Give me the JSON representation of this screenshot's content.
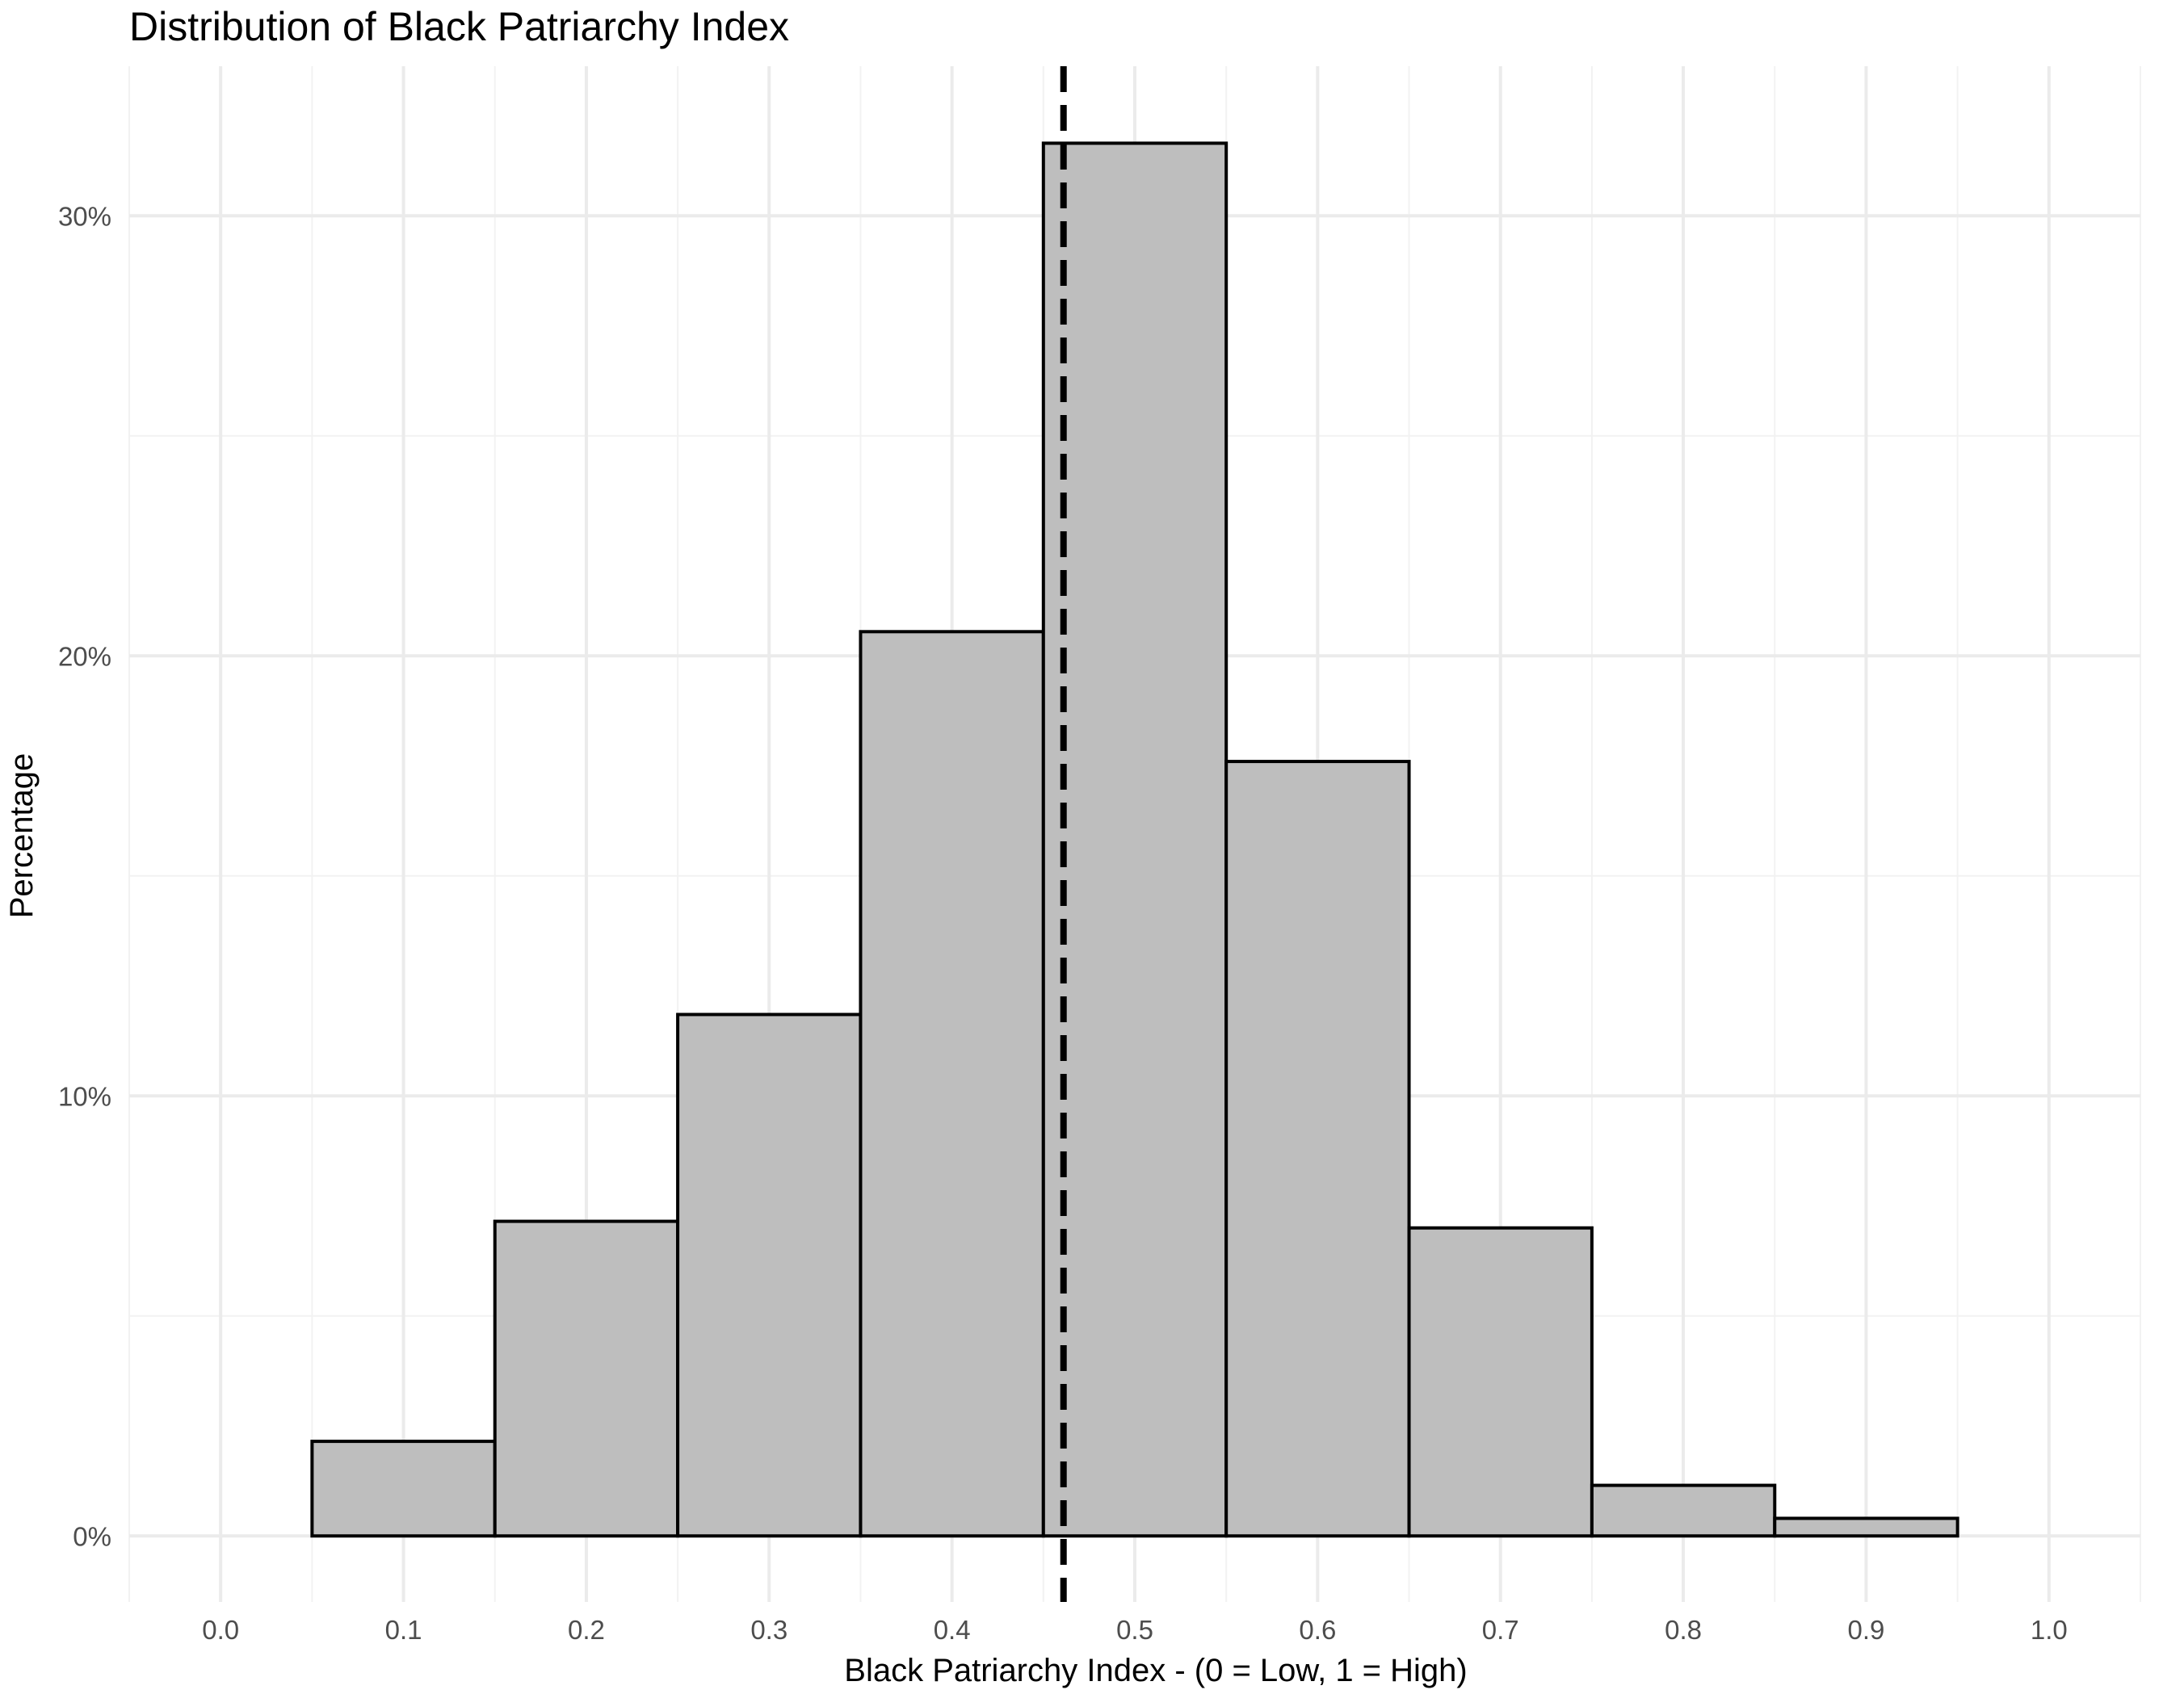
{
  "chart_data": {
    "type": "bar",
    "title": "Distribution of Black Patriarchy Index",
    "xlabel": "Black Patriarchy Index -  (0 = Low, 1 = High)",
    "ylabel": "Percentage",
    "xlim": [
      -0.05,
      1.05
    ],
    "ylim": [
      -0.015,
      0.334
    ],
    "x_ticks": [
      0.0,
      0.1,
      0.2,
      0.3,
      0.4,
      0.5,
      0.6,
      0.7,
      0.8,
      0.9,
      1.0
    ],
    "x_tick_labels": [
      "0.0",
      "0.1",
      "0.2",
      "0.3",
      "0.4",
      "0.5",
      "0.6",
      "0.7",
      "0.8",
      "0.9",
      "1.0"
    ],
    "y_ticks": [
      0,
      0.1,
      0.2,
      0.3
    ],
    "y_tick_labels": [
      "0%",
      "10%",
      "20%",
      "30%"
    ],
    "bin_width": 0.1,
    "bins": [
      {
        "x": 0.1,
        "value": 0.0215
      },
      {
        "x": 0.2,
        "value": 0.0715
      },
      {
        "x": 0.3,
        "value": 0.1185
      },
      {
        "x": 0.4,
        "value": 0.2055
      },
      {
        "x": 0.5,
        "value": 0.3165
      },
      {
        "x": 0.6,
        "value": 0.176
      },
      {
        "x": 0.7,
        "value": 0.07
      },
      {
        "x": 0.8,
        "value": 0.0115
      },
      {
        "x": 0.9,
        "value": 0.004
      }
    ],
    "reference_line": {
      "x": 0.461,
      "style": "dashed"
    },
    "grid": true,
    "legend": "none",
    "colors": {
      "bar_fill": "#bebebe",
      "bar_stroke": "#000000"
    }
  }
}
